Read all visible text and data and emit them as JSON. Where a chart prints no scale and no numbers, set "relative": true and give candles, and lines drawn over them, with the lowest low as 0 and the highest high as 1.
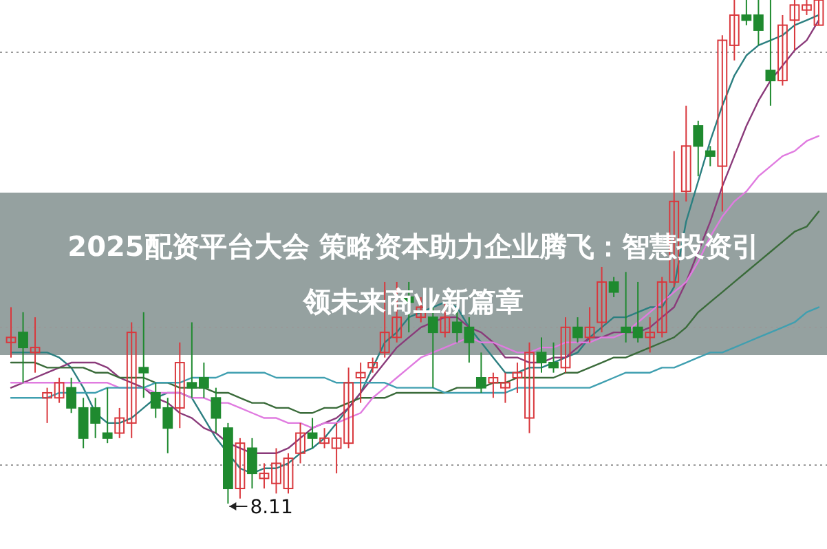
{
  "chart_data": {
    "type": "candlestick",
    "title": "2025配资平台大会 策略资本助力企业腾飞：智慧投资引领未来商业新篇章",
    "relative": true,
    "categories": [
      null,
      null,
      null,
      null,
      null,
      null,
      null,
      null,
      null,
      null,
      null,
      null,
      null,
      null,
      null,
      null,
      null,
      null,
      null,
      null,
      null,
      null,
      null,
      null,
      null,
      null,
      null,
      null,
      null,
      null,
      null,
      null,
      null,
      null,
      null,
      null,
      null,
      null,
      null,
      null,
      null,
      null,
      null,
      null,
      null,
      null,
      null,
      null,
      null,
      null,
      null,
      null,
      null,
      null,
      null,
      null,
      null,
      null,
      null,
      null,
      null,
      null,
      null,
      null,
      null,
      null,
      null,
      null
    ],
    "ohlc": [
      [
        0.32,
        0.39,
        0.29,
        0.33
      ],
      [
        0.34,
        0.38,
        0.24,
        0.31
      ],
      [
        0.3,
        0.37,
        0.26,
        0.31
      ],
      [
        0.21,
        0.23,
        0.16,
        0.22
      ],
      [
        0.21,
        0.25,
        0.2,
        0.24
      ],
      [
        0.23,
        0.25,
        0.18,
        0.19
      ],
      [
        0.19,
        0.21,
        0.11,
        0.13
      ],
      [
        0.19,
        0.21,
        0.13,
        0.16
      ],
      [
        0.14,
        0.23,
        0.12,
        0.13
      ],
      [
        0.14,
        0.19,
        0.13,
        0.17
      ],
      [
        0.16,
        0.36,
        0.13,
        0.34
      ],
      [
        0.27,
        0.38,
        0.21,
        0.26
      ],
      [
        0.22,
        0.24,
        0.17,
        0.19
      ],
      [
        0.19,
        0.21,
        0.1,
        0.15
      ],
      [
        0.19,
        0.32,
        0.15,
        0.28
      ],
      [
        0.24,
        0.36,
        0.21,
        0.23
      ],
      [
        0.25,
        0.28,
        0.21,
        0.23
      ],
      [
        0.21,
        0.23,
        0.14,
        0.17
      ],
      [
        0.15,
        0.16,
        0.0,
        0.03
      ],
      [
        0.03,
        0.13,
        0.01,
        0.12
      ],
      [
        0.11,
        0.13,
        0.03,
        0.06
      ],
      [
        0.05,
        0.08,
        0.03,
        0.06
      ],
      [
        0.04,
        0.11,
        0.02,
        0.08
      ],
      [
        0.03,
        0.1,
        0.02,
        0.09
      ],
      [
        0.1,
        0.16,
        0.08,
        0.14
      ],
      [
        0.14,
        0.17,
        0.11,
        0.13
      ],
      [
        0.12,
        0.15,
        0.11,
        0.13
      ],
      [
        0.11,
        0.16,
        0.06,
        0.13
      ],
      [
        0.12,
        0.27,
        0.11,
        0.24
      ],
      [
        0.25,
        0.28,
        0.2,
        0.26
      ],
      [
        0.27,
        0.29,
        0.26,
        0.28
      ],
      [
        0.3,
        0.44,
        0.29,
        0.34
      ],
      [
        0.33,
        0.44,
        0.32,
        0.37
      ],
      [
        0.41,
        0.44,
        0.34,
        0.4
      ],
      [
        0.37,
        0.41,
        0.36,
        0.39
      ],
      [
        0.37,
        0.39,
        0.23,
        0.34
      ],
      [
        0.34,
        0.4,
        0.33,
        0.37
      ],
      [
        0.36,
        0.39,
        0.32,
        0.34
      ],
      [
        0.35,
        0.37,
        0.28,
        0.32
      ],
      [
        0.25,
        0.3,
        0.22,
        0.23
      ],
      [
        0.24,
        0.26,
        0.21,
        0.25
      ],
      [
        0.23,
        0.26,
        0.2,
        0.24
      ],
      [
        0.25,
        0.28,
        0.22,
        0.26
      ],
      [
        0.17,
        0.32,
        0.14,
        0.3
      ],
      [
        0.3,
        0.33,
        0.26,
        0.28
      ],
      [
        0.28,
        0.32,
        0.26,
        0.27
      ],
      [
        0.27,
        0.37,
        0.26,
        0.35
      ],
      [
        0.35,
        0.37,
        0.32,
        0.33
      ],
      [
        0.33,
        0.39,
        0.32,
        0.35
      ],
      [
        0.36,
        0.47,
        0.34,
        0.44
      ],
      [
        0.44,
        0.45,
        0.41,
        0.42
      ],
      [
        0.35,
        0.46,
        0.32,
        0.34
      ],
      [
        0.35,
        0.44,
        0.32,
        0.33
      ],
      [
        0.33,
        0.37,
        0.3,
        0.34
      ],
      [
        0.34,
        0.45,
        0.33,
        0.44
      ],
      [
        0.44,
        0.7,
        0.43,
        0.6
      ],
      [
        0.62,
        0.79,
        0.6,
        0.71
      ],
      [
        0.75,
        0.76,
        0.65,
        0.71
      ],
      [
        0.7,
        0.71,
        0.67,
        0.69
      ],
      [
        0.67,
        0.93,
        0.58,
        0.92
      ],
      [
        0.91,
        1.0,
        0.88,
        0.97
      ],
      [
        0.97,
        1.0,
        0.95,
        0.96
      ],
      [
        0.97,
        1.0,
        0.91,
        0.94
      ],
      [
        0.86,
        1.0,
        0.79,
        0.84
      ],
      [
        0.84,
        0.97,
        0.83,
        0.95
      ],
      [
        0.96,
        1.0,
        0.9,
        0.99
      ],
      [
        0.98,
        1.0,
        0.97,
        0.99
      ],
      [
        0.95,
        1.0,
        0.95,
        1.0
      ]
    ],
    "series": [
      {
        "type": "line",
        "color": "#2b7f80",
        "values": [
          0.3,
          0.3,
          0.3,
          0.3,
          0.29,
          0.27,
          0.23,
          0.18,
          0.16,
          0.16,
          0.17,
          0.19,
          0.21,
          0.22,
          0.22,
          0.21,
          0.17,
          0.13,
          0.1,
          0.07,
          0.06,
          0.07,
          0.07,
          0.08,
          0.1,
          0.11,
          0.13,
          0.16,
          0.19,
          0.22,
          0.27,
          0.32,
          0.34,
          0.37,
          0.38,
          0.39,
          0.4,
          0.39,
          0.35,
          0.32,
          0.29,
          0.26,
          0.26,
          0.27,
          0.27,
          0.28,
          0.29,
          0.3,
          0.33,
          0.35,
          0.37,
          0.37,
          0.38,
          0.39,
          0.39,
          0.43,
          0.56,
          0.64,
          0.72,
          0.79,
          0.85,
          0.89,
          0.91,
          0.92,
          0.93,
          0.95,
          0.96,
          0.97
        ]
      },
      {
        "type": "line",
        "color": "#8a3a7a",
        "values": [
          0.23,
          0.24,
          0.25,
          0.26,
          0.27,
          0.28,
          0.28,
          0.28,
          0.27,
          0.25,
          0.24,
          0.23,
          0.21,
          0.2,
          0.18,
          0.17,
          0.15,
          0.14,
          0.12,
          0.11,
          0.1,
          0.1,
          0.1,
          0.11,
          0.13,
          0.15,
          0.16,
          0.17,
          0.19,
          0.22,
          0.25,
          0.28,
          0.31,
          0.33,
          0.35,
          0.36,
          0.37,
          0.37,
          0.35,
          0.34,
          0.32,
          0.29,
          0.29,
          0.28,
          0.28,
          0.29,
          0.29,
          0.31,
          0.33,
          0.33,
          0.34,
          0.34,
          0.34,
          0.35,
          0.37,
          0.39,
          0.44,
          0.5,
          0.56,
          0.63,
          0.69,
          0.75,
          0.8,
          0.84,
          0.87,
          0.9,
          0.92,
          0.96
        ]
      },
      {
        "type": "line",
        "color": "#3a6b3a",
        "values": [
          0.28,
          0.28,
          0.28,
          0.27,
          0.27,
          0.27,
          0.27,
          0.26,
          0.26,
          0.25,
          0.25,
          0.25,
          0.24,
          0.24,
          0.23,
          0.23,
          0.23,
          0.22,
          0.22,
          0.21,
          0.2,
          0.2,
          0.19,
          0.19,
          0.18,
          0.18,
          0.19,
          0.19,
          0.2,
          0.21,
          0.21,
          0.21,
          0.22,
          0.22,
          0.22,
          0.22,
          0.22,
          0.23,
          0.23,
          0.23,
          0.24,
          0.24,
          0.25,
          0.25,
          0.25,
          0.25,
          0.26,
          0.26,
          0.27,
          0.28,
          0.29,
          0.29,
          0.3,
          0.31,
          0.32,
          0.33,
          0.35,
          0.38,
          0.4,
          0.42,
          0.44,
          0.46,
          0.48,
          0.5,
          0.52,
          0.54,
          0.55,
          0.58
        ]
      },
      {
        "type": "line",
        "color": "#e07be0",
        "values": [
          0.24,
          0.24,
          0.24,
          0.24,
          0.24,
          0.24,
          0.24,
          0.24,
          0.24,
          0.23,
          0.23,
          0.23,
          0.22,
          0.22,
          0.22,
          0.21,
          0.21,
          0.2,
          0.2,
          0.19,
          0.18,
          0.17,
          0.17,
          0.16,
          0.16,
          0.15,
          0.16,
          0.16,
          0.17,
          0.18,
          0.21,
          0.23,
          0.25,
          0.27,
          0.29,
          0.3,
          0.31,
          0.32,
          0.33,
          0.32,
          0.32,
          0.31,
          0.3,
          0.3,
          0.31,
          0.31,
          0.32,
          0.32,
          0.32,
          0.33,
          0.33,
          0.34,
          0.36,
          0.38,
          0.4,
          0.42,
          0.44,
          0.48,
          0.53,
          0.57,
          0.6,
          0.62,
          0.65,
          0.67,
          0.69,
          0.7,
          0.72,
          0.73
        ]
      },
      {
        "type": "line",
        "color": "#3f9fb0",
        "values": [
          0.21,
          0.21,
          0.21,
          0.21,
          0.22,
          0.22,
          0.22,
          0.22,
          0.23,
          0.23,
          0.23,
          0.23,
          0.24,
          0.24,
          0.24,
          0.25,
          0.25,
          0.25,
          0.26,
          0.26,
          0.26,
          0.26,
          0.25,
          0.25,
          0.25,
          0.25,
          0.25,
          0.24,
          0.24,
          0.24,
          0.24,
          0.24,
          0.23,
          0.23,
          0.23,
          0.23,
          0.22,
          0.22,
          0.22,
          0.22,
          0.22,
          0.22,
          0.23,
          0.23,
          0.23,
          0.23,
          0.23,
          0.23,
          0.23,
          0.24,
          0.25,
          0.26,
          0.26,
          0.26,
          0.27,
          0.27,
          0.28,
          0.29,
          0.3,
          0.3,
          0.31,
          0.32,
          0.33,
          0.34,
          0.35,
          0.36,
          0.38,
          0.39
        ]
      }
    ],
    "annotations": [
      "8.11"
    ]
  }
}
